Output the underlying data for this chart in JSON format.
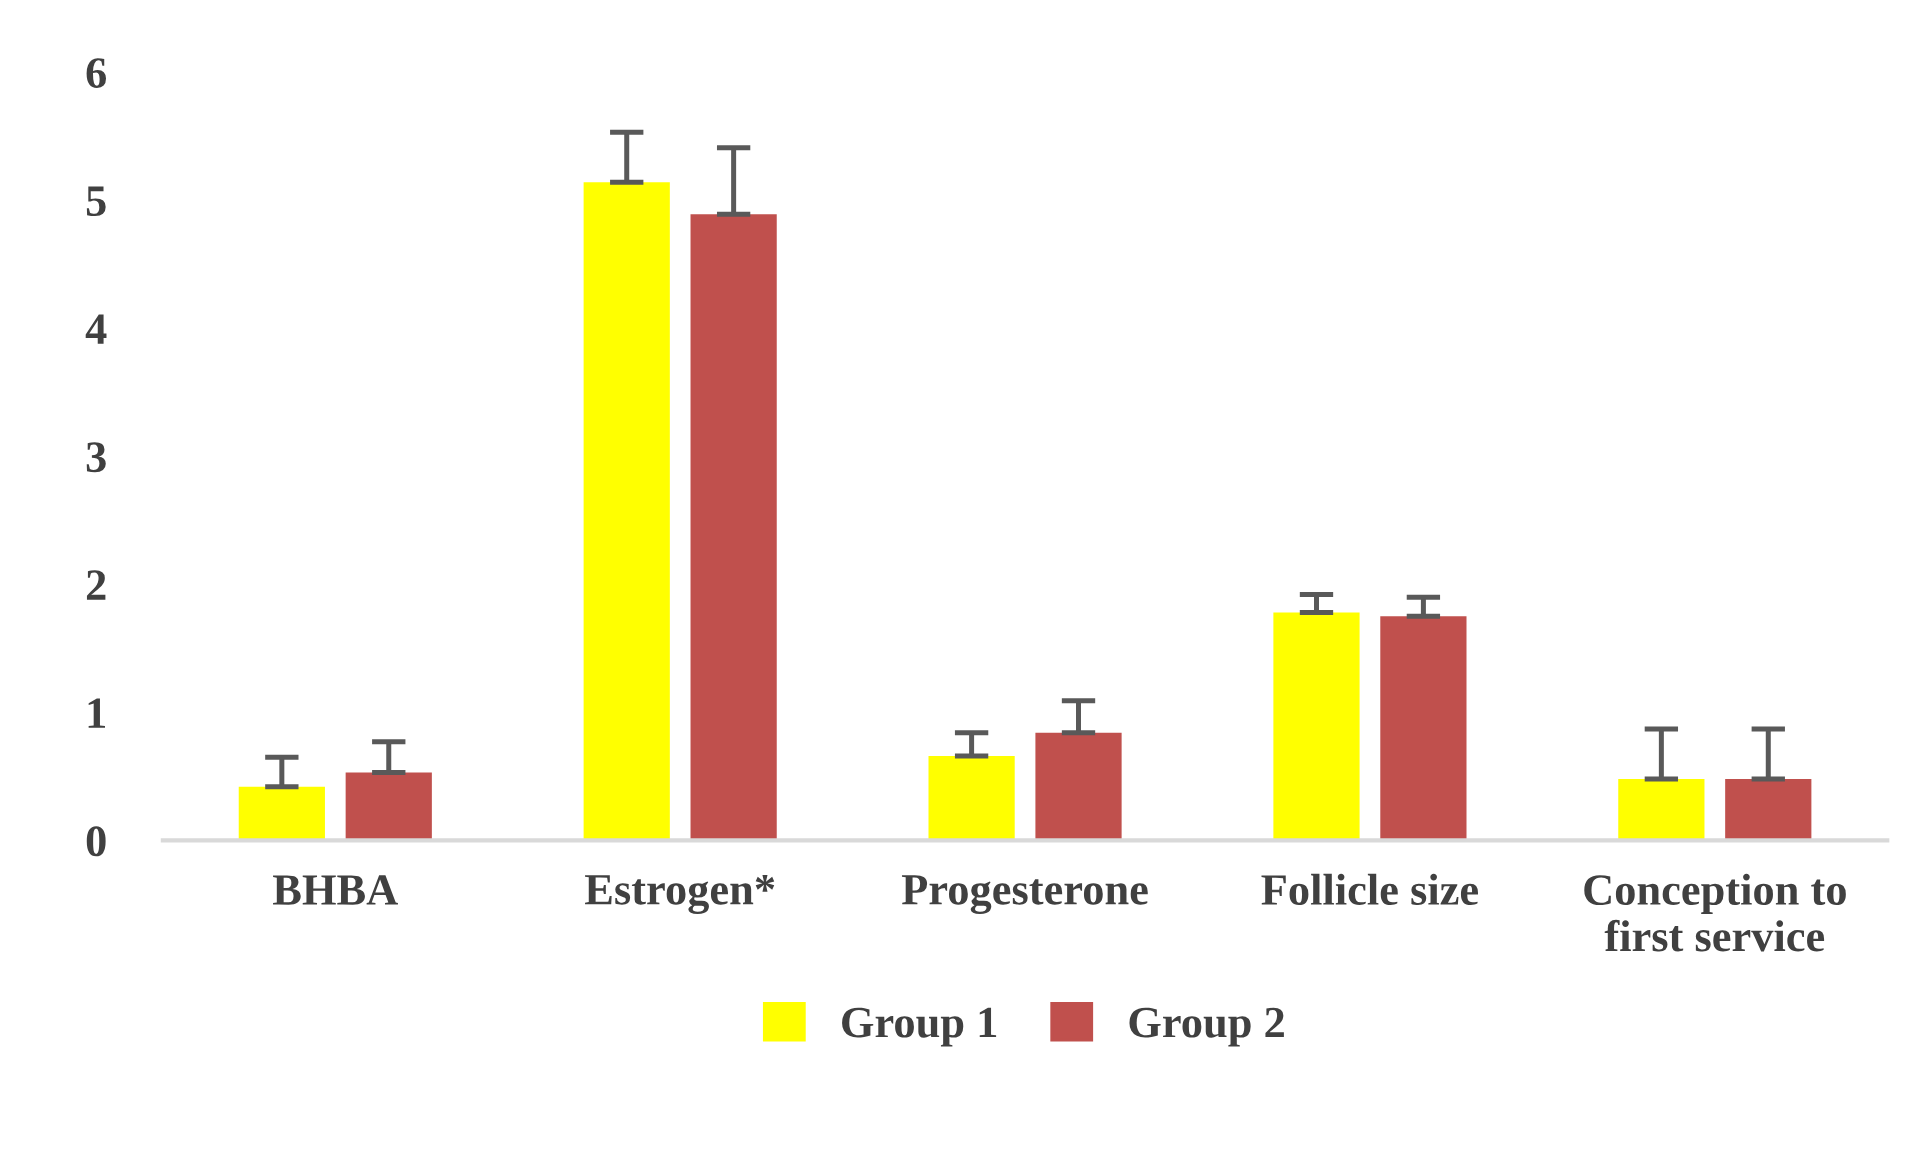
{
  "chart_data": {
    "type": "bar",
    "categories": [
      "BHBA",
      "Estrogen*",
      "Progesterone",
      "Follicle size",
      "Conception to\nfirst service"
    ],
    "series": [
      {
        "name": "Group 1",
        "color": "#ffff00",
        "values": [
          0.42,
          5.14,
          0.66,
          1.78,
          0.48
        ],
        "errors": [
          [
            0.42,
            0.65
          ],
          [
            5.14,
            5.53
          ],
          [
            0.66,
            0.84
          ],
          [
            1.78,
            1.92
          ],
          [
            0.48,
            0.87
          ]
        ]
      },
      {
        "name": "Group 2",
        "color": "#c0504d",
        "values": [
          0.53,
          4.89,
          0.84,
          1.75,
          0.48
        ],
        "errors": [
          [
            0.53,
            0.77
          ],
          [
            4.89,
            5.41
          ],
          [
            0.84,
            1.09
          ],
          [
            1.75,
            1.9
          ],
          [
            0.48,
            0.87
          ]
        ]
      }
    ],
    "ylim": [
      0,
      6
    ],
    "yticks": [
      0,
      1,
      2,
      3,
      4,
      5,
      6
    ],
    "grid": false,
    "legend": "bottom"
  }
}
